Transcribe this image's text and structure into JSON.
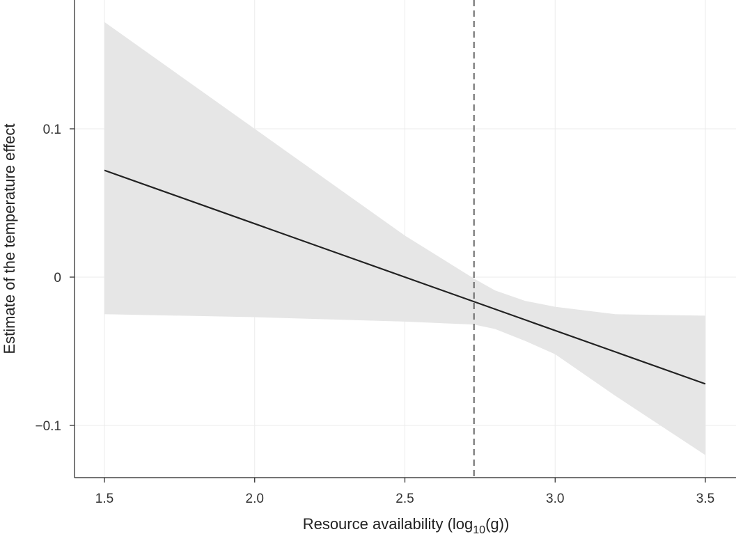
{
  "chart_data": {
    "type": "line",
    "title": "",
    "xlabel": "Resource availability (log",
    "xlabel_subscript": "10",
    "xlabel_suffix": "(g))",
    "ylabel": "Estimate of the temperature effect",
    "xlim": [
      1.4,
      3.5
    ],
    "ylim": [
      -0.13,
      0.185
    ],
    "x_ticks": [
      1.5,
      2.0,
      2.5,
      3.0,
      3.5
    ],
    "x_tick_labels": [
      "1.5",
      "2.0",
      "2.5",
      "3.0",
      "3.5"
    ],
    "y_ticks": [
      -0.1,
      0,
      0.1
    ],
    "y_tick_labels": [
      "−0.1",
      "0",
      "0.1"
    ],
    "grid": true,
    "reference_line": {
      "x": 2.73,
      "style": "dashed"
    },
    "series": [
      {
        "x": [
          1.5,
          3.5
        ],
        "y": [
          0.072,
          -0.072
        ]
      }
    ],
    "confidence_band": {
      "x": [
        1.5,
        2.0,
        2.5,
        2.73,
        2.8,
        2.9,
        3.0,
        3.2,
        3.5
      ],
      "lower": [
        -0.025,
        -0.027,
        -0.03,
        -0.032,
        -0.035,
        -0.043,
        -0.052,
        -0.08,
        -0.12
      ],
      "upper": [
        0.172,
        0.1,
        0.028,
        -0.001,
        -0.009,
        -0.016,
        -0.02,
        -0.025,
        -0.026
      ]
    },
    "colors": {
      "line": "#222222",
      "band": "#e6e6e6",
      "reference_line": "#666666",
      "grid": "#ebebeb"
    }
  }
}
